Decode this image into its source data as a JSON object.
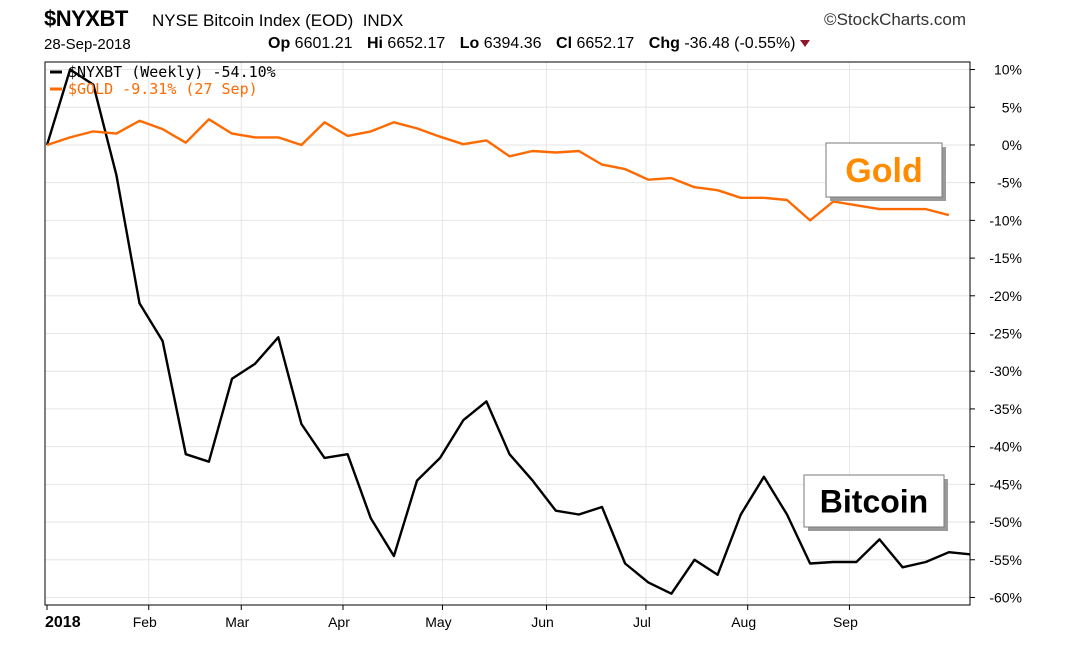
{
  "header": {
    "symbol": "$NYXBT",
    "description": "NYSE Bitcoin Index (EOD)",
    "exchange": "INDX",
    "brand": "StockCharts.com",
    "date": "28-Sep-2018",
    "open_label": "Op",
    "open": "6601.21",
    "high_label": "Hi",
    "high": "6652.17",
    "low_label": "Lo",
    "low": "6394.36",
    "close_label": "Cl",
    "close": "6652.17",
    "change_label": "Chg",
    "change": "-36.48 (-0.55%)"
  },
  "colors": {
    "bitcoin": "#000000",
    "gold": "#ff6a00",
    "gold_label": "#ff8c00",
    "grid": "#e6e6e6"
  },
  "chart_data": {
    "type": "line",
    "ylim": [
      -61,
      11
    ],
    "yticks": [
      "10%",
      "5%",
      "0%",
      "-5%",
      "-10%",
      "-15%",
      "-20%",
      "-25%",
      "-30%",
      "-35%",
      "-40%",
      "-45%",
      "-50%",
      "-55%",
      "-60%"
    ],
    "ytick_values": [
      10,
      5,
      0,
      -5,
      -10,
      -15,
      -20,
      -25,
      -30,
      -35,
      -40,
      -45,
      -50,
      -55,
      -60
    ],
    "xlabels": [
      {
        "label": "2018",
        "week": 0
      },
      {
        "label": "Feb",
        "week": 4.4
      },
      {
        "label": "Mar",
        "week": 8.4
      },
      {
        "label": "Apr",
        "week": 12.8
      },
      {
        "label": "May",
        "week": 17.1
      },
      {
        "label": "Jun",
        "week": 21.6
      },
      {
        "label": "Jul",
        "week": 25.9
      },
      {
        "label": "Aug",
        "week": 30.3
      },
      {
        "label": "Sep",
        "week": 34.7
      }
    ],
    "legend_position": "top-left",
    "grid": true,
    "series": [
      {
        "name": "$NYXBT (Weekly) -54.10%",
        "key": "bitcoin",
        "values": [
          0,
          10,
          8,
          -4,
          -21,
          -26,
          -41,
          -42,
          -31,
          -29,
          -25.5,
          -37,
          -41.5,
          -41,
          -49.5,
          -54.5,
          -44.5,
          -41.5,
          -36.5,
          -34,
          -41,
          -44.5,
          -48.5,
          -49,
          -48,
          -55.5,
          -58,
          -59.5,
          -55,
          -57,
          -49,
          -44,
          -49,
          -55.5,
          -55.3,
          -55.3,
          -52.3,
          -56,
          -55.3,
          -54,
          -54.3
        ]
      },
      {
        "name": "$GOLD -9.31% (27 Sep)",
        "key": "gold",
        "values": [
          0,
          1,
          1.8,
          1.5,
          3.2,
          2.1,
          0.3,
          3.4,
          1.5,
          1,
          1,
          0,
          3,
          1.2,
          1.8,
          3,
          2.2,
          1.1,
          0.1,
          0.6,
          -1.5,
          -0.8,
          -1,
          -0.8,
          -2.6,
          -3.2,
          -4.6,
          -4.4,
          -5.6,
          -6,
          -7,
          -7,
          -7.3,
          -10,
          -7.5,
          -8,
          -8.5,
          -8.5,
          -8.5,
          -9.3
        ]
      }
    ],
    "annotations": [
      {
        "text": "Gold",
        "key": "gold"
      },
      {
        "text": "Bitcoin",
        "key": "bitcoin"
      }
    ]
  }
}
